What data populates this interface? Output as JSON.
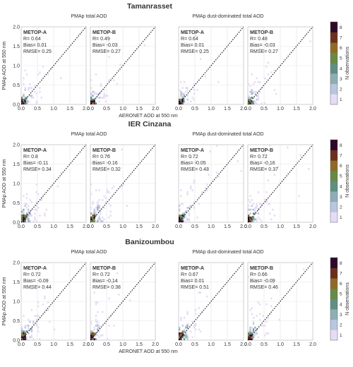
{
  "figure": {
    "x_axis_label": "AERONET AOD at 550 nm",
    "y_axis_label": "PMAp AOD at 550 nm",
    "colorbar_label": "N observations",
    "colorbar_ticks": [
      "1",
      "2",
      "3",
      "4",
      "5",
      "6",
      "7",
      "8"
    ],
    "colorbar_colors": [
      "#e5dcf6",
      "#b9c6df",
      "#8eaeb5",
      "#5f8f80",
      "#678a45",
      "#8f6a24",
      "#6d2e1c",
      "#2d0a28"
    ],
    "column_titles": [
      "PMAp total AOD",
      "PMAp dust-dominated total AOD"
    ]
  },
  "chart_data": [
    {
      "site": "Tamanrasset",
      "type": "heatmap",
      "xlim": [
        0,
        2
      ],
      "ylim": [
        0,
        2
      ],
      "x_ticks": [
        "0.0",
        "0.5",
        "1.0",
        "1.5",
        "2.0"
      ],
      "y_ticks": [
        "0.0",
        "0.5",
        "1.0",
        "1.5",
        "2.0"
      ],
      "panels": [
        {
          "satellite": "METOP-A",
          "r": "R= 0.64",
          "bias": "Bias= 0.01",
          "rmse": "RMSE= 0.25"
        },
        {
          "satellite": "METOP-B",
          "r": "R= 0.49",
          "bias": "Bias= -0.03",
          "rmse": "RMSE= 0.27"
        },
        {
          "satellite": "METOP-A",
          "r": "R= 0.64",
          "bias": "Bias= 0.01",
          "rmse": "RMSE= 0.25"
        },
        {
          "satellite": "METOP-B",
          "r": "R= 0.48",
          "bias": "Bias= -0.03",
          "rmse": "RMSE= 0.27"
        }
      ]
    },
    {
      "site": "IER Cinzana",
      "type": "heatmap",
      "xlim": [
        0,
        2
      ],
      "ylim": [
        0,
        2
      ],
      "x_ticks": [
        "0.0",
        "0.5",
        "1.0",
        "1.5",
        "2.0"
      ],
      "y_ticks": [
        "0.0",
        "0.5",
        "1.0",
        "1.5",
        "2.0"
      ],
      "panels": [
        {
          "satellite": "METOP-A",
          "r": "R= 0.8",
          "bias": "Bias= -0.11",
          "rmse": "RMSE= 0.34"
        },
        {
          "satellite": "METOP-B",
          "r": "R= 0.76",
          "bias": "Bias= -0.16",
          "rmse": "RMSE= 0.32"
        },
        {
          "satellite": "METOP-A",
          "r": "R= 0.72",
          "bias": "Bias= -0.05",
          "rmse": "RMSE= 0.43"
        },
        {
          "satellite": "METOP-B",
          "r": "R= 0.72",
          "bias": "Bias= -0.16",
          "rmse": "RMSE= 0.37"
        }
      ]
    },
    {
      "site": "Banizoumbou",
      "type": "heatmap",
      "xlim": [
        0,
        2
      ],
      "ylim": [
        0,
        2
      ],
      "x_ticks": [
        "0.0",
        "0.5",
        "1.0",
        "1.5",
        "2.0"
      ],
      "y_ticks": [
        "0.0",
        "0.5",
        "1.0",
        "1.5",
        "2.0"
      ],
      "panels": [
        {
          "satellite": "METOP-A",
          "r": "R= 0.72",
          "bias": "Bias= -0.09",
          "rmse": "RMSE= 0.44"
        },
        {
          "satellite": "METOP-B",
          "r": "R= 0.72",
          "bias": "Bias= -0.14",
          "rmse": "RMSE= 0.38"
        },
        {
          "satellite": "METOP-A",
          "r": "R= 0.67",
          "bias": "Bias= 0.01",
          "rmse": "RMSE= 0.51"
        },
        {
          "satellite": "METOP-B",
          "r": "R= 0.66",
          "bias": "Bias= -0.09",
          "rmse": "RMSE= 0.46"
        }
      ]
    }
  ]
}
